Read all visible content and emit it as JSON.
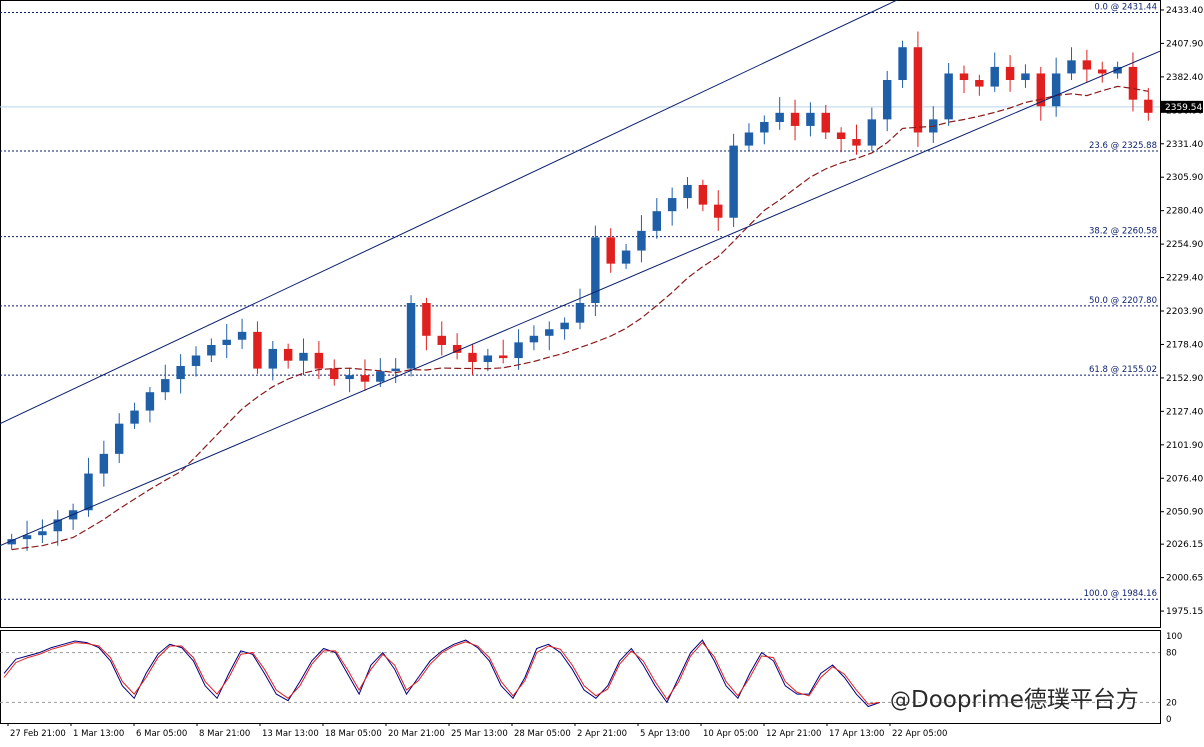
{
  "chart_data": [
    {
      "type": "candlestick",
      "title": "",
      "y_axis": {
        "ylim": [
          1963.0,
          2441.0
        ],
        "ticks": [
          "2433.40",
          "2407.90",
          "2382.40",
          "2356.90",
          "2331.40",
          "2305.90",
          "2280.40",
          "2254.90",
          "2229.40",
          "2203.90",
          "2178.40",
          "2152.90",
          "2127.40",
          "2101.90",
          "2076.40",
          "2050.90",
          "2026.15",
          "2000.65",
          "1975.15"
        ],
        "current_price": "2359.54"
      },
      "x_axis": {
        "tick_labels": [
          "27 Feb 21:00",
          "1 Mar 13:00",
          "6 Mar 05:00",
          "8 Mar 21:00",
          "13 Mar 13:00",
          "18 Mar 05:00",
          "20 Mar 21:00",
          "25 Mar 13:00",
          "28 Mar 05:00",
          "2 Apr 21:00",
          "5 Apr 13:00",
          "10 Apr 05:00",
          "12 Apr 21:00",
          "17 Apr 13:00",
          "22 Apr 05:00"
        ]
      },
      "fibonacci_levels": [
        {
          "label": "0.0 @ 2431.44",
          "value": 2431.44
        },
        {
          "label": "23.6 @ 2325.88",
          "value": 2325.88
        },
        {
          "label": "38.2 @ 2260.58",
          "value": 2260.58
        },
        {
          "label": "50.0 @ 2207.80",
          "value": 2207.8
        },
        {
          "label": "61.8 @ 2155.02",
          "value": 2155.02
        },
        {
          "label": "100.0 @ 1984.16",
          "value": 1984.16
        }
      ],
      "close_path": [
        2030,
        2033,
        2036,
        2045,
        2052,
        2080,
        2095,
        2118,
        2128,
        2142,
        2152,
        2162,
        2170,
        2178,
        2182,
        2188,
        2160,
        2175,
        2166,
        2172,
        2160,
        2152,
        2155,
        2150,
        2158,
        2160,
        2210,
        2185,
        2178,
        2172,
        2165,
        2170,
        2168,
        2180,
        2185,
        2190,
        2195,
        2210,
        2260,
        2240,
        2250,
        2265,
        2280,
        2290,
        2300,
        2285,
        2275,
        2330,
        2340,
        2348,
        2355,
        2345,
        2355,
        2340,
        2335,
        2330,
        2350,
        2380,
        2405,
        2340,
        2350,
        2385,
        2380,
        2375,
        2390,
        2380,
        2385,
        2360,
        2385,
        2395,
        2388,
        2385,
        2390,
        2365,
        2355
      ],
      "colors": {
        "up": "#1f5fa8",
        "down": "#e01f1f",
        "ma": "#8b1a1a",
        "channel": "#0a1f6e",
        "fib": "#0a1f6e",
        "stoch_main": "#000080",
        "stoch_signal": "#e01f1f"
      },
      "channel_lines": "parallel ascending channel (upper and lower)",
      "moving_average": "dashed long-period moving average"
    },
    {
      "type": "line",
      "title": "",
      "ylim": [
        0,
        100
      ],
      "tick_labels": [
        "100",
        "80",
        "20",
        "0"
      ],
      "levels": [
        80,
        20
      ],
      "series": [
        {
          "values": [
            55,
            72,
            76,
            80,
            86,
            90,
            94,
            92,
            86,
            70,
            40,
            25,
            55,
            78,
            90,
            86,
            70,
            40,
            25,
            55,
            82,
            78,
            55,
            30,
            22,
            45,
            70,
            85,
            80,
            55,
            30,
            65,
            80,
            60,
            30,
            50,
            70,
            82,
            90,
            95,
            86,
            70,
            40,
            25,
            50,
            85,
            90,
            80,
            60,
            35,
            25,
            40,
            70,
            85,
            65,
            40,
            20,
            50,
            80,
            95,
            70,
            40,
            25,
            55,
            80,
            70,
            40,
            30,
            30,
            55,
            65,
            50,
            30,
            15,
            20
          ]
        },
        {
          "values": [
            50,
            68,
            74,
            78,
            84,
            88,
            92,
            91,
            88,
            74,
            45,
            30,
            50,
            74,
            88,
            88,
            74,
            45,
            30,
            50,
            78,
            80,
            60,
            35,
            25,
            40,
            66,
            82,
            82,
            60,
            35,
            60,
            78,
            65,
            35,
            46,
            66,
            80,
            88,
            93,
            88,
            74,
            45,
            28,
            46,
            80,
            88,
            84,
            65,
            40,
            28,
            36,
            66,
            82,
            70,
            45,
            24,
            45,
            76,
            92,
            75,
            45,
            28,
            50,
            76,
            74,
            45,
            32,
            28,
            50,
            63,
            54,
            35,
            18,
            20
          ]
        }
      ]
    }
  ],
  "watermark": {
    "symbol": "@",
    "text": "Dooprime德璞平台方"
  }
}
